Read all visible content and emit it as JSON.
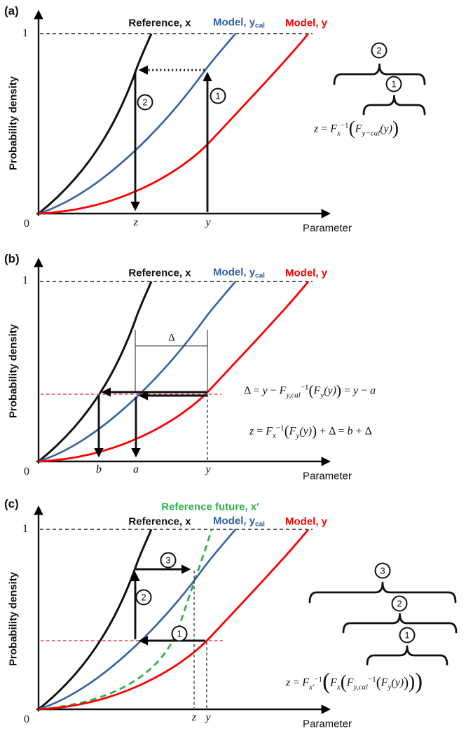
{
  "colors": {
    "reference": "#111111",
    "model_cal": "#2F5EA8",
    "model": "#FF0000",
    "reference_future": "#2EB34B",
    "highlight_dash": "#EE4444"
  },
  "panels": {
    "a": {
      "tag": "(a)",
      "ylabel": "Probability density",
      "xlabel": "Parameter",
      "one": "1",
      "zero": "0",
      "legend": [
        {
          "text": "Reference, x",
          "sub": ""
        },
        {
          "text": "Model, y",
          "sub": "cal"
        },
        {
          "text": "Model, y",
          "sub": ""
        }
      ],
      "points": {
        "z": "z",
        "y": "y"
      },
      "steps": {
        "s1": "1",
        "s2": "2"
      },
      "eq": [
        [
          "i",
          "z"
        ],
        [
          "n",
          " = "
        ],
        [
          "i",
          "F"
        ],
        [
          "s",
          "x"
        ],
        [
          "u",
          "−1"
        ],
        [
          "p2",
          "("
        ],
        [
          "i",
          "F"
        ],
        [
          "s",
          "y−cal"
        ],
        [
          "i",
          "(y)"
        ],
        [
          "p2",
          ")"
        ]
      ]
    },
    "b": {
      "tag": "(b)",
      "ylabel": "Probability density",
      "xlabel": "Parameter",
      "one": "1",
      "zero": "0",
      "legend": [
        {
          "text": "Reference, x",
          "sub": ""
        },
        {
          "text": "Model, y",
          "sub": "cal"
        },
        {
          "text": "Model, y",
          "sub": ""
        }
      ],
      "delta": "Δ",
      "points": {
        "b": "b",
        "a": "a",
        "y": "y"
      },
      "eq1": [
        [
          "n",
          "Δ = "
        ],
        [
          "i",
          "y"
        ],
        [
          "n",
          " − "
        ],
        [
          "i",
          "F"
        ],
        [
          "s",
          "y,cal"
        ],
        [
          "u",
          "−1"
        ],
        [
          "p1",
          "("
        ],
        [
          "i",
          "F"
        ],
        [
          "s",
          "y"
        ],
        [
          "i",
          "(y)"
        ],
        [
          "p1",
          ")"
        ],
        [
          "n",
          " = "
        ],
        [
          "i",
          "y"
        ],
        [
          "n",
          " − "
        ],
        [
          "i",
          "a"
        ]
      ],
      "eq2": [
        [
          "i",
          "z"
        ],
        [
          "n",
          " = "
        ],
        [
          "i",
          "F"
        ],
        [
          "s",
          "x"
        ],
        [
          "u",
          "−1"
        ],
        [
          "p1",
          "("
        ],
        [
          "i",
          "F"
        ],
        [
          "s",
          "y"
        ],
        [
          "i",
          "(y)"
        ],
        [
          "p1",
          ")"
        ],
        [
          "n",
          " + Δ = "
        ],
        [
          "i",
          "b"
        ],
        [
          "n",
          " + Δ"
        ]
      ]
    },
    "c": {
      "tag": "(c)",
      "ylabel": "Probability density",
      "xlabel": "Parameter",
      "one": "1",
      "zero": "0",
      "legend_future": {
        "text": "Reference future, x′",
        "sub": ""
      },
      "legend": [
        {
          "text": "Reference, x",
          "sub": ""
        },
        {
          "text": "Model, y",
          "sub": "cal"
        },
        {
          "text": "Model, y",
          "sub": ""
        }
      ],
      "points": {
        "z": "z",
        "y": "y"
      },
      "steps": {
        "s1": "1",
        "s2": "2",
        "s3": "3"
      },
      "eq": [
        [
          "i",
          "z"
        ],
        [
          "n",
          " = "
        ],
        [
          "i",
          "F"
        ],
        [
          "s",
          "x′"
        ],
        [
          "u",
          "−1"
        ],
        [
          "p3",
          "("
        ],
        [
          "i",
          "F"
        ],
        [
          "s",
          "x"
        ],
        [
          "p2",
          "("
        ],
        [
          "i",
          "F"
        ],
        [
          "s",
          "y,cal"
        ],
        [
          "u",
          "−1"
        ],
        [
          "p1",
          "("
        ],
        [
          "i",
          "F"
        ],
        [
          "s",
          "y"
        ],
        [
          "i",
          "(y)"
        ],
        [
          "p1",
          ")"
        ],
        [
          "p2",
          ")"
        ],
        [
          "p3",
          ")"
        ]
      ]
    }
  }
}
